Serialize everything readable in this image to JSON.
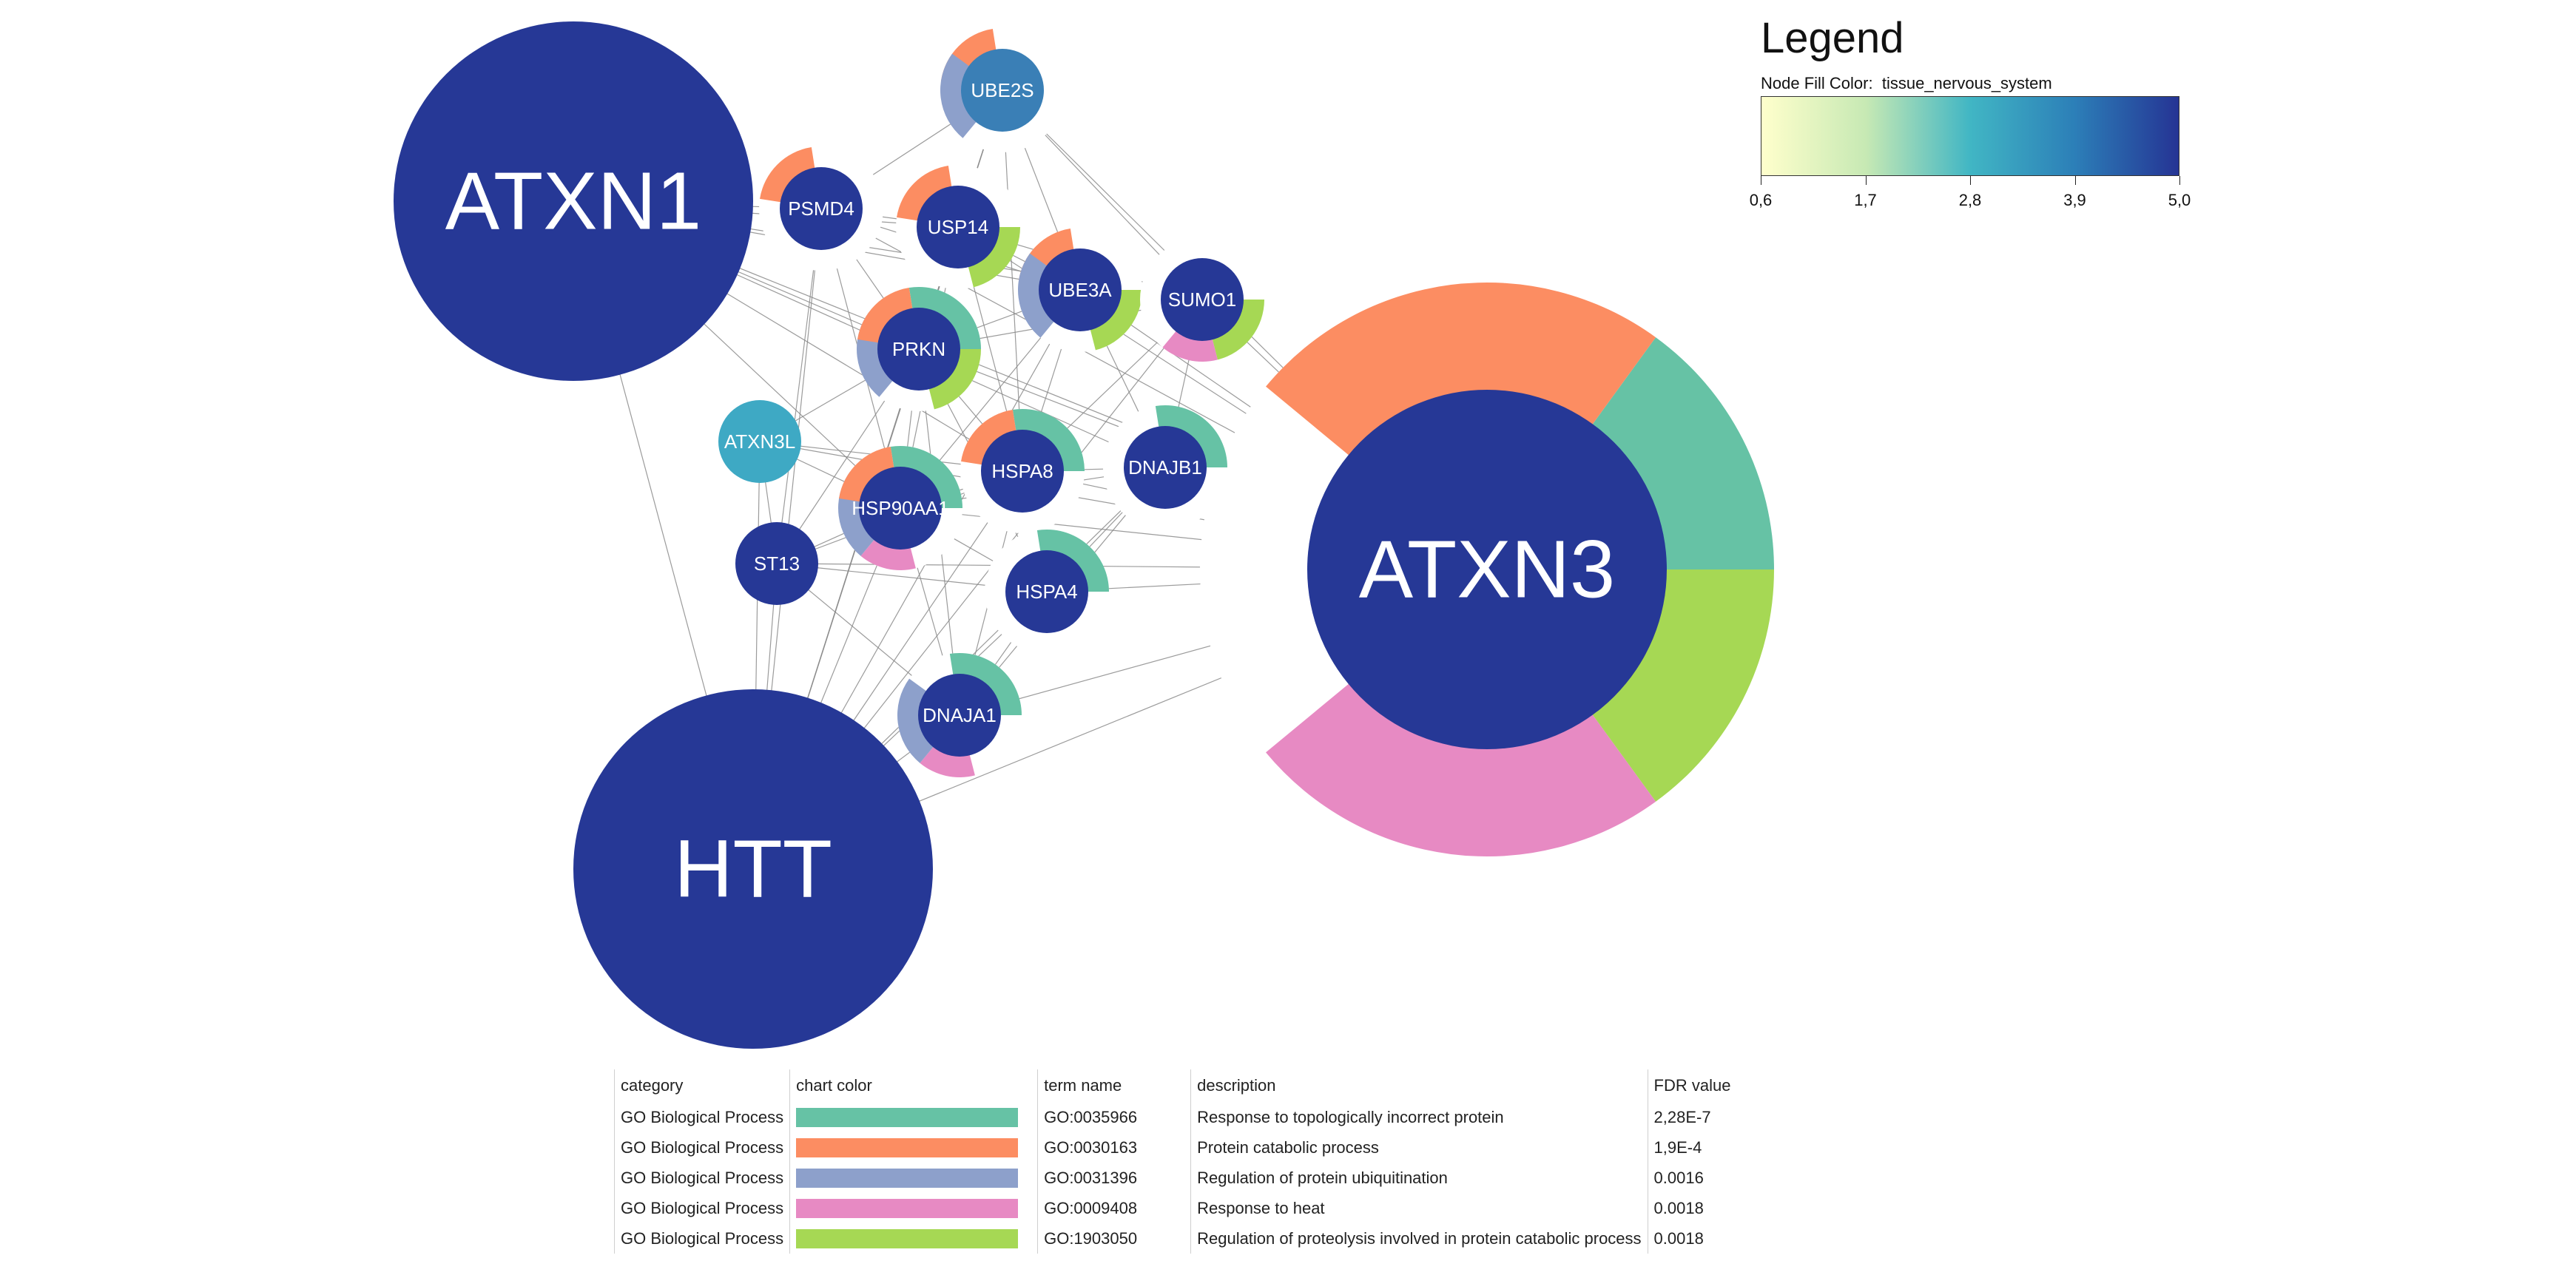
{
  "legend": {
    "title": "Legend",
    "subtitle_prefix": "Node Fill Color:",
    "attribute": "tissue_nervous_system",
    "ticks": [
      "0,6",
      "1,7",
      "2,8",
      "3,9",
      "5,0"
    ],
    "gradient_colors": [
      "#ffffcc",
      "#c7e9b4",
      "#41b6c4",
      "#2c7fb8",
      "#253494"
    ]
  },
  "term_colors": {
    "GO:0035966": "#66c2a5",
    "GO:0030163": "#fc8d62",
    "GO:0031396": "#8da0cb",
    "GO:0009408": "#e78ac3",
    "GO:1903050": "#a6d854"
  },
  "nodes": [
    {
      "label": "ATXN1",
      "value": 5.0,
      "fill": "#263896",
      "terms": []
    },
    {
      "label": "HTT",
      "value": 5.0,
      "fill": "#263896",
      "terms": []
    },
    {
      "label": "ATXN3",
      "value": 5.0,
      "fill": "#263896",
      "terms": [
        "GO:0035966",
        "GO:1903050",
        "GO:0009408",
        "GO:0030163"
      ]
    },
    {
      "label": "UBE2S",
      "value": 3.9,
      "fill": "#3a7fb6",
      "terms": [
        "GO:0030163",
        "GO:0031396"
      ]
    },
    {
      "label": "PSMD4",
      "value": 5.0,
      "fill": "#263896",
      "terms": [
        "GO:0030163"
      ]
    },
    {
      "label": "USP14",
      "value": 5.0,
      "fill": "#263896",
      "terms": [
        "GO:0030163",
        "GO:1903050"
      ]
    },
    {
      "label": "UBE3A",
      "value": 5.0,
      "fill": "#263896",
      "terms": [
        "GO:0030163",
        "GO:1903050",
        "GO:0031396"
      ]
    },
    {
      "label": "SUMO1",
      "value": 5.0,
      "fill": "#263896",
      "terms": [
        "GO:1903050",
        "GO:0009408"
      ]
    },
    {
      "label": "PRKN",
      "value": 5.0,
      "fill": "#263896",
      "terms": [
        "GO:0035966",
        "GO:1903050",
        "GO:0031396",
        "GO:0030163"
      ]
    },
    {
      "label": "ATXN3L",
      "value": 3.0,
      "fill": "#3ea9c4",
      "terms": []
    },
    {
      "label": "HSPA8",
      "value": 5.0,
      "fill": "#263896",
      "terms": [
        "GO:0035966",
        "GO:0030163"
      ]
    },
    {
      "label": "DNAJB1",
      "value": 5.0,
      "fill": "#263896",
      "terms": [
        "GO:0035966"
      ]
    },
    {
      "label": "HSP90AA1",
      "value": 5.0,
      "fill": "#263896",
      "terms": [
        "GO:0035966",
        "GO:0009408",
        "GO:0031396",
        "GO:0030163"
      ]
    },
    {
      "label": "ST13",
      "value": 5.0,
      "fill": "#263896",
      "terms": []
    },
    {
      "label": "HSPA4",
      "value": 5.0,
      "fill": "#263896",
      "terms": [
        "GO:0035966"
      ]
    },
    {
      "label": "DNAJA1",
      "value": 5.0,
      "fill": "#263896",
      "terms": [
        "GO:0035966",
        "GO:0009408",
        "GO:0031396"
      ]
    }
  ],
  "edges": [
    [
      "ATXN1",
      "PSMD4"
    ],
    [
      "ATXN1",
      "USP14"
    ],
    [
      "ATXN1",
      "UBE3A"
    ],
    [
      "ATXN1",
      "PRKN"
    ],
    [
      "ATXN1",
      "HSPA8"
    ],
    [
      "ATXN1",
      "HSP90AA1"
    ],
    [
      "ATXN1",
      "ATXN3"
    ],
    [
      "ATXN1",
      "HTT"
    ],
    [
      "ATXN1",
      "DNAJB1"
    ],
    [
      "ATXN1",
      "SUMO1"
    ],
    [
      "HTT",
      "ATXN3L"
    ],
    [
      "HTT",
      "ST13"
    ],
    [
      "HTT",
      "HSP90AA1"
    ],
    [
      "HTT",
      "PRKN"
    ],
    [
      "HTT",
      "HSPA8"
    ],
    [
      "HTT",
      "HSPA4"
    ],
    [
      "HTT",
      "DNAJA1"
    ],
    [
      "HTT",
      "UBE3A"
    ],
    [
      "HTT",
      "USP14"
    ],
    [
      "HTT",
      "PSMD4"
    ],
    [
      "HTT",
      "ATXN3"
    ],
    [
      "HTT",
      "SUMO1"
    ],
    [
      "HTT",
      "DNAJB1"
    ],
    [
      "HTT",
      "UBE2S"
    ],
    [
      "ATXN3",
      "UBE2S"
    ],
    [
      "ATXN3",
      "USP14"
    ],
    [
      "ATXN3",
      "UBE3A"
    ],
    [
      "ATXN3",
      "SUMO1"
    ],
    [
      "ATXN3",
      "PRKN"
    ],
    [
      "ATXN3",
      "HSPA8"
    ],
    [
      "ATXN3",
      "DNAJB1"
    ],
    [
      "ATXN3",
      "HSP90AA1"
    ],
    [
      "ATXN3",
      "HSPA4"
    ],
    [
      "ATXN3",
      "DNAJA1"
    ],
    [
      "ATXN3",
      "ST13"
    ],
    [
      "ATXN3",
      "ATXN3L"
    ],
    [
      "ATXN3",
      "PSMD4"
    ],
    [
      "UBE2S",
      "PSMD4"
    ],
    [
      "UBE2S",
      "USP14"
    ],
    [
      "UBE2S",
      "UBE3A"
    ],
    [
      "UBE2S",
      "SUMO1"
    ],
    [
      "UBE2S",
      "PRKN"
    ],
    [
      "UBE2S",
      "HSPA8"
    ],
    [
      "PSMD4",
      "USP14"
    ],
    [
      "PSMD4",
      "PRKN"
    ],
    [
      "PSMD4",
      "UBE3A"
    ],
    [
      "PSMD4",
      "HSP90AA1"
    ],
    [
      "PSMD4",
      "ST13"
    ],
    [
      "USP14",
      "UBE3A"
    ],
    [
      "USP14",
      "PRKN"
    ],
    [
      "USP14",
      "HSPA8"
    ],
    [
      "USP14",
      "SUMO1"
    ],
    [
      "USP14",
      "HSP90AA1"
    ],
    [
      "UBE3A",
      "SUMO1"
    ],
    [
      "UBE3A",
      "PRKN"
    ],
    [
      "UBE3A",
      "HSPA8"
    ],
    [
      "UBE3A",
      "DNAJB1"
    ],
    [
      "UBE3A",
      "HSP90AA1"
    ],
    [
      "SUMO1",
      "PRKN"
    ],
    [
      "SUMO1",
      "HSPA8"
    ],
    [
      "SUMO1",
      "DNAJB1"
    ],
    [
      "PRKN",
      "ATXN3L"
    ],
    [
      "PRKN",
      "HSPA8"
    ],
    [
      "PRKN",
      "HSP90AA1"
    ],
    [
      "PRKN",
      "ST13"
    ],
    [
      "PRKN",
      "HSPA4"
    ],
    [
      "PRKN",
      "DNAJA1"
    ],
    [
      "ATXN3L",
      "HSP90AA1"
    ],
    [
      "ATXN3L",
      "ST13"
    ],
    [
      "ATXN3L",
      "HSPA8"
    ],
    [
      "HSPA8",
      "HSP90AA1"
    ],
    [
      "HSPA8",
      "DNAJB1"
    ],
    [
      "HSPA8",
      "HSPA4"
    ],
    [
      "HSPA8",
      "DNAJA1"
    ],
    [
      "HSPA8",
      "ST13"
    ],
    [
      "DNAJB1",
      "HSPA4"
    ],
    [
      "DNAJB1",
      "DNAJA1"
    ],
    [
      "DNAJB1",
      "HSP90AA1"
    ],
    [
      "HSP90AA1",
      "ST13"
    ],
    [
      "HSP90AA1",
      "HSPA4"
    ],
    [
      "HSP90AA1",
      "DNAJA1"
    ],
    [
      "ST13",
      "HSPA4"
    ],
    [
      "ST13",
      "DNAJA1"
    ],
    [
      "HSPA4",
      "DNAJA1"
    ]
  ],
  "table": {
    "headers": {
      "category": "category",
      "chart_color": "chart color",
      "term_name": "term name",
      "description": "description",
      "fdr": "FDR value"
    },
    "rows": [
      {
        "category": "GO Biological Process",
        "color": "#66c2a5",
        "term": "GO:0035966",
        "description": "Response to topologically incorrect protein",
        "fdr": "2,28E-7"
      },
      {
        "category": "GO Biological Process",
        "color": "#fc8d62",
        "term": "GO:0030163",
        "description": "Protein catabolic process",
        "fdr": "1,9E-4"
      },
      {
        "category": "GO Biological Process",
        "color": "#8da0cb",
        "term": "GO:0031396",
        "description": "Regulation of protein ubiquitination",
        "fdr": "0.0016"
      },
      {
        "category": "GO Biological Process",
        "color": "#e78ac3",
        "term": "GO:0009408",
        "description": "Response to heat",
        "fdr": "0.0018"
      },
      {
        "category": "GO Biological Process",
        "color": "#a6d854",
        "term": "GO:1903050",
        "description": "Regulation of proteolysis involved in protein catabolic process",
        "fdr": "0.0018"
      }
    ]
  }
}
